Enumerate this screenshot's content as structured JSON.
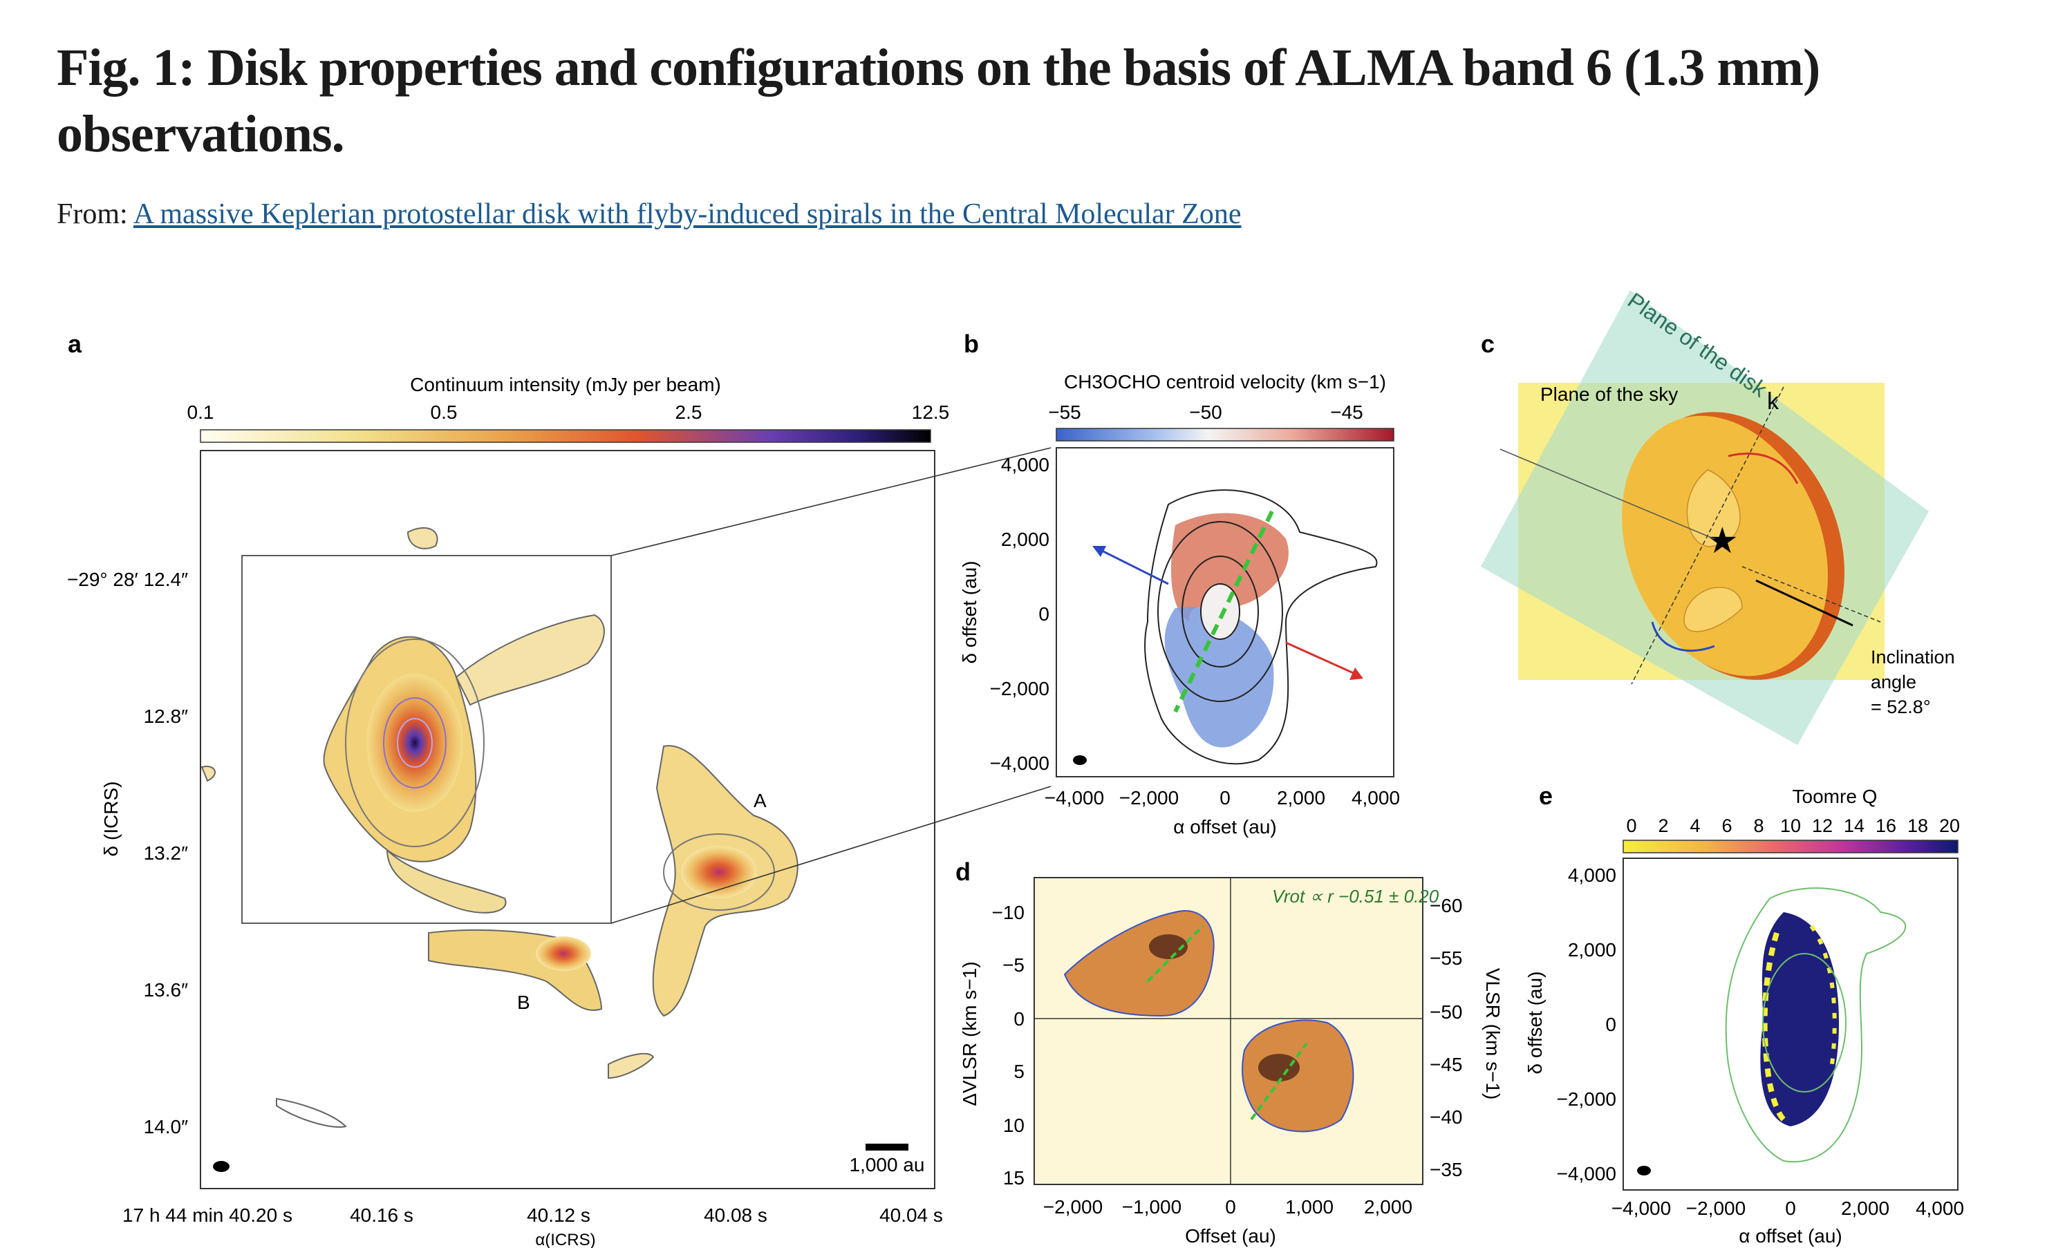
{
  "title": "Fig. 1: Disk properties and configurations on the basis of ALMA band 6 (1.3  mm) observations.",
  "from_label": "From:",
  "from_link": "A massive Keplerian protostellar disk with flyby-induced spirals in the Central Molecular Zone",
  "panels": {
    "a": {
      "letter": "a",
      "colorbar_title": "Continuum intensity (mJy per beam)",
      "colorbar_ticks": [
        "0.1",
        "0.5",
        "2.5",
        "12.5"
      ],
      "ylabel": "δ (ICRS)",
      "xlabel": "α(ICRS)",
      "yticks": [
        "−29° 28′ 12.4″",
        "12.8″",
        "13.2″",
        "13.6″",
        "14.0″"
      ],
      "xticks": [
        "17 h 44 min 40.20 s",
        "40.16 s",
        "40.12 s",
        "40.08 s",
        "40.04 s"
      ],
      "source_a": "A",
      "source_b": "B",
      "scalebar": "1,000 au"
    },
    "b": {
      "letter": "b",
      "colorbar_title": "CH3OCHO centroid velocity (km s−1)",
      "colorbar_ticks": [
        "−55",
        "−50",
        "−45"
      ],
      "yticks": [
        "4,000",
        "2,000",
        "0",
        "−2,000",
        "−4,000"
      ],
      "xticks": [
        "−4,000",
        "−2,000",
        "0",
        "2,000",
        "4,000"
      ],
      "ylabel": "δ offset (au)",
      "xlabel": "α offset (au)"
    },
    "c": {
      "letter": "c",
      "plane_disk": "Plane of the disk",
      "plane_sky": "Plane of the sky",
      "k_label": "k",
      "incl_1": "Inclination",
      "incl_2": "angle",
      "incl_3": "= 52.8°"
    },
    "d": {
      "letter": "d",
      "yticks_left": [
        "−10",
        "−5",
        "0",
        "5",
        "10",
        "15"
      ],
      "yticks_right": [
        "−60",
        "−55",
        "−50",
        "−45",
        "−40",
        "−35"
      ],
      "xticks": [
        "−2,000",
        "−1,000",
        "0",
        "1,000",
        "2,000"
      ],
      "ylabel_left": "ΔVLSR (km s−1)",
      "ylabel_right": "VLSR (km s−1)",
      "xlabel": "Offset (au)",
      "fit_label": "Vrot ∝ r −0.51 ± 0.20"
    },
    "e": {
      "letter": "e",
      "colorbar_title": "Toomre Q",
      "colorbar_ticks": [
        "0",
        "2",
        "4",
        "6",
        "8",
        "10",
        "12",
        "14",
        "16",
        "18",
        "20"
      ],
      "yticks": [
        "4,000",
        "2,000",
        "0",
        "−2,000",
        "−4,000"
      ],
      "xticks": [
        "−4,000",
        "−2,000",
        "0",
        "2,000",
        "4,000"
      ],
      "ylabel": "δ offset (au)",
      "xlabel": "α offset (au)"
    }
  },
  "colors": {
    "link": "#1c5a8f",
    "disk_plane": "#a9dccb",
    "sky_plane": "#f7ec7d",
    "disk_face": "#f2bd3e",
    "disk_edge": "#d95f1e",
    "redshift_arrow": "#d9302a",
    "blueshift_arrow": "#2a47c6",
    "fit_line": "#39c43c"
  }
}
